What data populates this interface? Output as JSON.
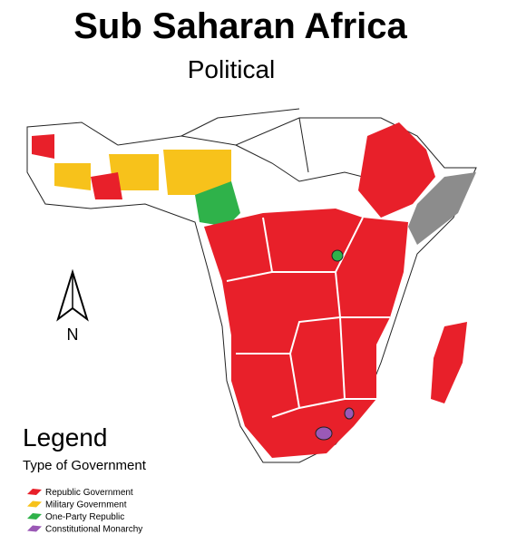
{
  "header": {
    "title": "Sub Saharan Africa",
    "subtitle": "Political"
  },
  "compass": {
    "label": "N"
  },
  "legend": {
    "title": "Legend",
    "subtitle": "Type of Government",
    "items": [
      {
        "label": "Republic Government",
        "color": "#e8202a"
      },
      {
        "label": "Military Government",
        "color": "#f7c21b"
      },
      {
        "label": "One-Party Republic",
        "color": "#2fb24a"
      },
      {
        "label": "Constitutional Monarchy",
        "color": "#9b59b6"
      }
    ]
  }
}
